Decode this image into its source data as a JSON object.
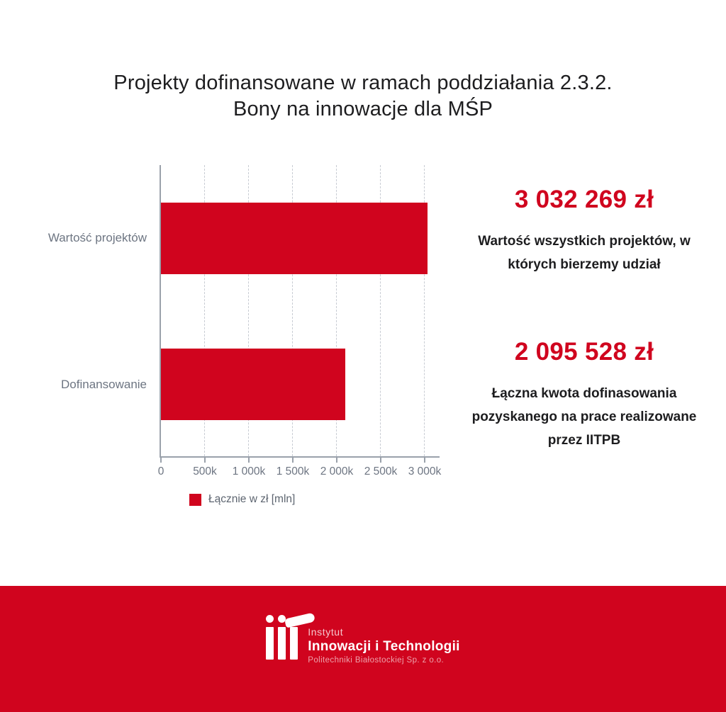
{
  "title": {
    "line1": "Projekty dofinansowane w ramach poddziałania 2.3.2.",
    "line2": "Bony na innowacje dla MŚP"
  },
  "chart_data": {
    "type": "bar",
    "orientation": "horizontal",
    "categories": [
      "Wartość projektów",
      "Dofinansowanie"
    ],
    "values": [
      3032269,
      2095528
    ],
    "x_ticks": [
      "0",
      "500k",
      "1 000k",
      "1 500k",
      "2 000k",
      "2 500k",
      "3 000k"
    ],
    "x_tick_values": [
      0,
      500000,
      1000000,
      1500000,
      2000000,
      2500000,
      3000000
    ],
    "xlim": [
      0,
      3185000
    ],
    "grid": "vertical-dashed",
    "legend": "Łącznie w zł [mln]",
    "legend_position": "bottom-left",
    "bar_color": "#d0041e"
  },
  "stats": [
    {
      "value": "3 032 269 zł",
      "description": "Wartość wszystkich projektów, w których bierzemy udział"
    },
    {
      "value": "2 095 528 zł",
      "description": "Łączna kwota dofinasowania pozyskanego na prace realizowane przez IITPB"
    }
  ],
  "footer": {
    "logo_line1": "Instytut",
    "logo_line2": "Innowacji i Technologii",
    "logo_line3": "Politechniki Białostockiej Sp. z o.o."
  },
  "colors": {
    "accent_red": "#d0041e",
    "text_dark": "#1d1d1f",
    "label_gray": "#6d7582",
    "axis_gray": "#9aa1ab",
    "gridline_gray": "#c8ccd3"
  }
}
